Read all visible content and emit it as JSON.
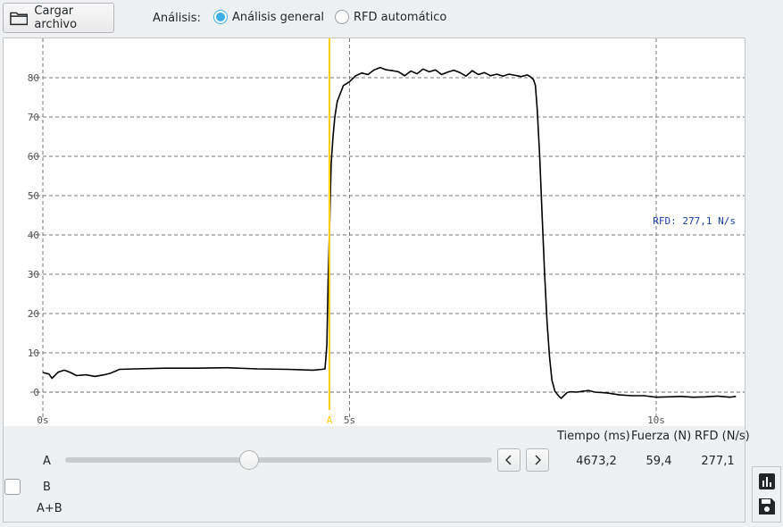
{
  "toolbar": {
    "load_button_label": "Cargar archivo",
    "analysis_label": "Análisis:",
    "radio_general": "Análisis general",
    "radio_rfd": "RFD automático",
    "selected_mode": "Análisis general"
  },
  "chart_data": {
    "type": "line",
    "title": "",
    "xlabel": "",
    "ylabel": "",
    "xlim": [
      0,
      11.6
    ],
    "ylim": [
      -7.5,
      90
    ],
    "y_ticks": [
      "80",
      "70",
      "60",
      "50",
      "40",
      "30",
      "20",
      "10",
      "0"
    ],
    "x_ticks": [
      "0s",
      "5s",
      "10s"
    ],
    "annotation": "RFD: 277,1 N/s",
    "marker": {
      "label": "A",
      "x": 4.673,
      "color": "#ffcc00"
    },
    "grid": true,
    "series": [
      {
        "color": "#000000",
        "x": [
          0,
          0.1,
          0.15,
          0.25,
          0.35,
          0.45,
          0.55,
          0.7,
          0.85,
          1.0,
          1.1,
          1.25,
          1.5,
          2.0,
          2.5,
          3.0,
          3.5,
          4.0,
          4.4,
          4.55,
          4.6,
          4.63,
          4.65,
          4.68,
          4.7,
          4.73,
          4.76,
          4.8,
          4.85,
          4.9,
          5.0,
          5.1,
          5.2,
          5.3,
          5.4,
          5.5,
          5.6,
          5.7,
          5.8,
          5.9,
          6.0,
          6.1,
          6.2,
          6.3,
          6.4,
          6.5,
          6.6,
          6.7,
          6.8,
          6.9,
          7.0,
          7.1,
          7.2,
          7.3,
          7.4,
          7.5,
          7.6,
          7.7,
          7.8,
          7.9,
          7.95,
          8.0,
          8.03,
          8.06,
          8.1,
          8.14,
          8.18,
          8.22,
          8.26,
          8.3,
          8.35,
          8.4,
          8.45,
          8.5,
          8.55,
          8.6,
          8.7,
          8.8,
          8.9,
          9.0,
          9.2,
          9.4,
          9.6,
          9.8,
          10.0,
          10.2,
          10.4,
          10.6,
          10.8,
          11.0,
          11.2,
          11.3
        ],
        "y": [
          5.0,
          4.6,
          3.5,
          5.1,
          5.6,
          5.0,
          4.2,
          4.4,
          4.0,
          4.4,
          4.8,
          5.8,
          5.9,
          6.1,
          6.1,
          6.2,
          5.9,
          5.8,
          5.6,
          5.8,
          5.9,
          12.0,
          28.0,
          45.0,
          58.0,
          65.0,
          70.0,
          74.0,
          76.0,
          78.0,
          79.0,
          80.5,
          81.2,
          80.8,
          82.0,
          82.6,
          82.0,
          81.8,
          81.5,
          80.5,
          81.7,
          81.0,
          82.2,
          81.5,
          82.0,
          80.8,
          81.4,
          81.9,
          81.3,
          80.4,
          81.8,
          80.8,
          81.3,
          80.5,
          80.9,
          80.4,
          80.9,
          80.6,
          80.3,
          80.7,
          80.2,
          79.5,
          78.0,
          72.0,
          60.0,
          45.0,
          30.0,
          18.0,
          9.0,
          3.0,
          0.2,
          -0.8,
          -1.6,
          -0.8,
          -0.1,
          0.1,
          0.0,
          0.2,
          0.4,
          0.0,
          -0.2,
          -0.7,
          -0.9,
          -0.9,
          -1.3,
          -1.2,
          -1.1,
          -1.3,
          -1.2,
          -1.0,
          -1.3,
          -1.1
        ]
      }
    ]
  },
  "values_table": {
    "headers": [
      "Tiempo (ms)",
      "Fuerza (N)",
      "RFD (N/s)"
    ],
    "row_a": {
      "label": "A",
      "tiempo": "4673,2",
      "fuerza": "59,4",
      "rfd": "277,1"
    },
    "row_b": {
      "label": "B"
    },
    "row_ab": {
      "label": "A+B"
    }
  },
  "slider": {
    "value_fraction": 0.43
  },
  "icons": {
    "load": "folder-icon",
    "prev": "chevron-left-icon",
    "next": "chevron-right-icon",
    "chart_tool": "bar-chart-icon",
    "save_tool": "save-icon"
  }
}
